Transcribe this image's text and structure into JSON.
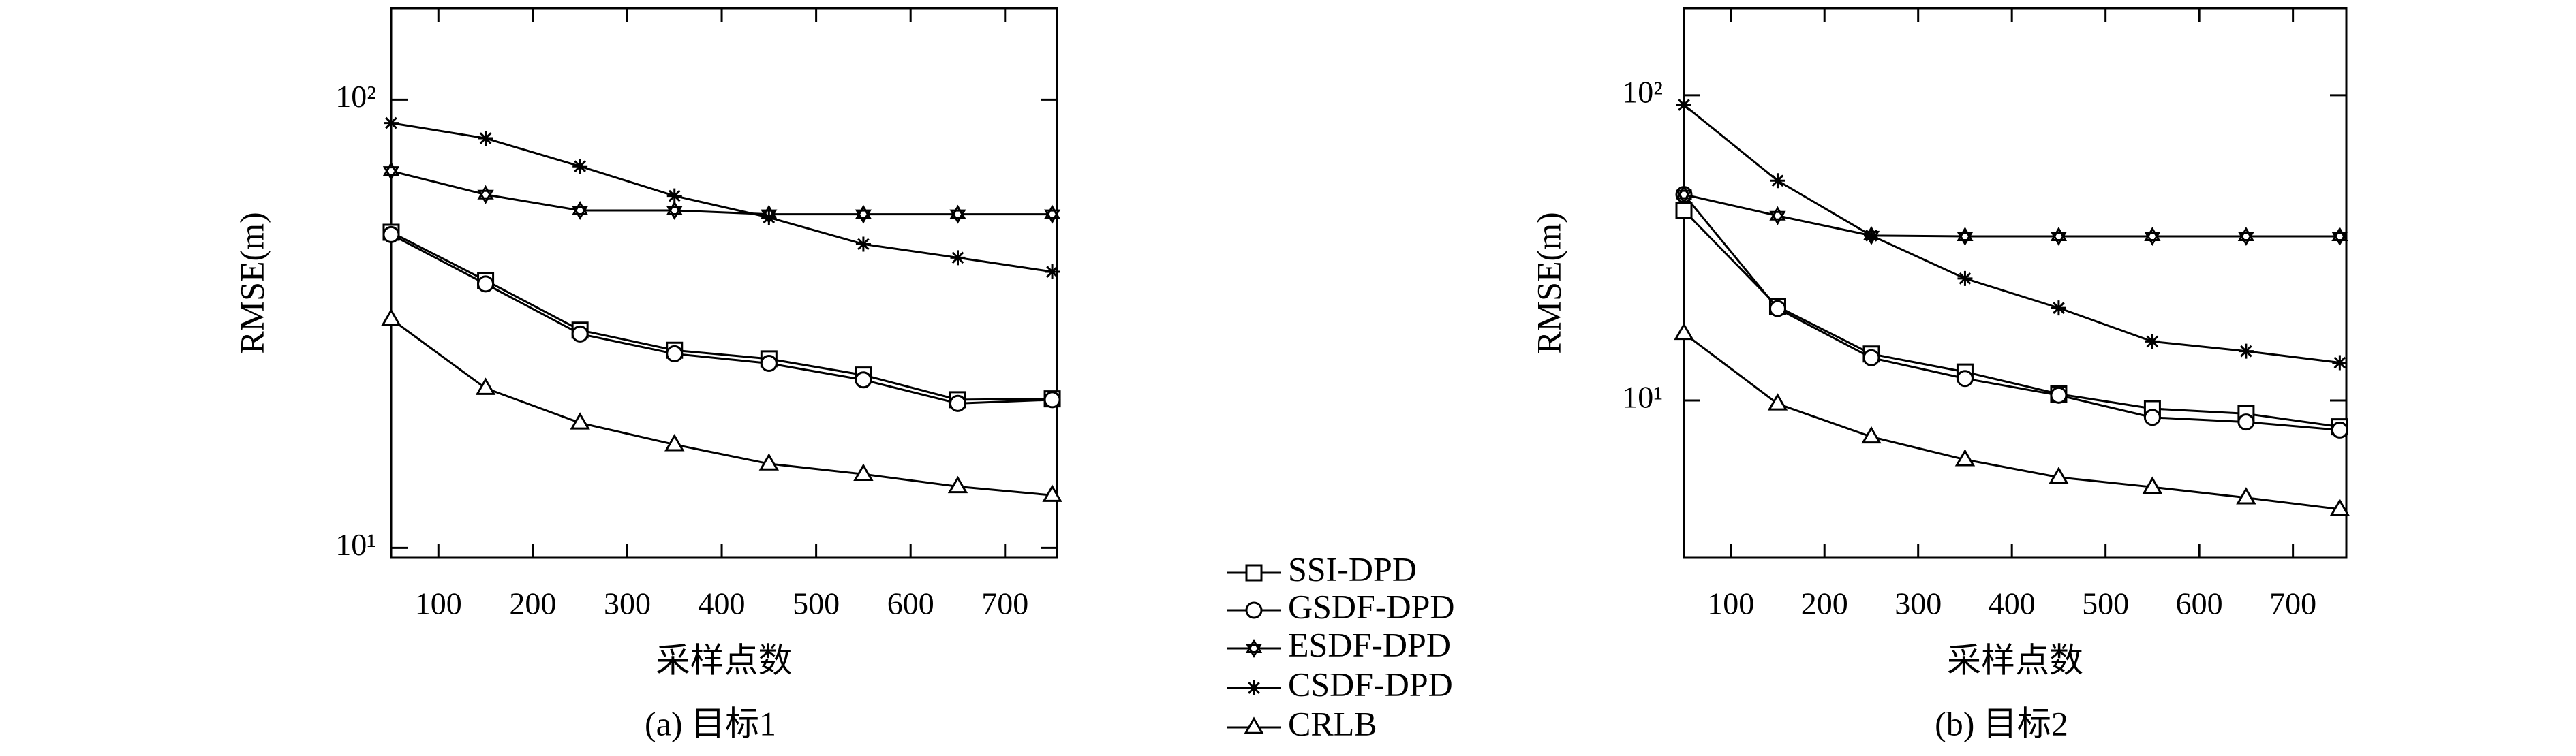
{
  "chart_data": [
    {
      "type": "line",
      "caption": "(a) 目标1",
      "xlabel": "采样点数",
      "ylabel": "RMSE(m)",
      "x": [
        50,
        150,
        250,
        350,
        450,
        550,
        650,
        750
      ],
      "xlim": [
        50,
        755
      ],
      "xticks": [
        100,
        200,
        300,
        400,
        500,
        600,
        700
      ],
      "ylog": true,
      "ylim": [
        9.5,
        160
      ],
      "yticks": [
        {
          "value": 10,
          "label": "10¹"
        },
        {
          "value": 100,
          "label": "10²"
        }
      ],
      "series": [
        {
          "name": "SSI-DPD",
          "color": "#000000",
          "marker": "square",
          "values": [
            50.6,
            39.5,
            30.6,
            27.6,
            26.4,
            24.3,
            21.4,
            21.5
          ]
        },
        {
          "name": "GSDF-DPD",
          "color": "#000000",
          "marker": "circle",
          "values": [
            50,
            38.8,
            30,
            27.1,
            25.8,
            23.7,
            21,
            21.4
          ]
        },
        {
          "name": "ESDF-DPD",
          "color": "#000000",
          "marker": "hexagram",
          "values": [
            69.3,
            61.4,
            56.6,
            56.6,
            55.5,
            55.5,
            55.5,
            55.5
          ]
        },
        {
          "name": "CSDF-DPD",
          "color": "#000000",
          "marker": "asterisk",
          "values": [
            88.7,
            82,
            71,
            61,
            54.6,
            47.6,
            44.4,
            41.3
          ]
        },
        {
          "name": "CRLB",
          "color": "#000000",
          "marker": "triangle",
          "values": [
            32.4,
            22.7,
            19,
            17,
            15.4,
            14.6,
            13.7,
            13.1
          ]
        }
      ]
    },
    {
      "type": "line",
      "caption": "(b) 目标2",
      "xlabel": "采样点数",
      "ylabel": "RMSE(m)",
      "x": [
        50,
        150,
        250,
        350,
        450,
        550,
        650,
        750
      ],
      "xlim": [
        50,
        757
      ],
      "xticks": [
        100,
        200,
        300,
        400,
        500,
        600,
        700
      ],
      "ylog": true,
      "ylim": [
        3.05,
        193
      ],
      "yticks": [
        {
          "value": 10,
          "label": "10¹"
        },
        {
          "value": 100,
          "label": "10²"
        }
      ],
      "series": [
        {
          "color": "#000000",
          "marker": "square",
          "values": [
            41.9,
            20.3,
            14.2,
            12.4,
            10.5,
            9.4,
            9.05,
            8.2
          ]
        },
        {
          "color": "#000000",
          "marker": "circle",
          "values": [
            47.3,
            20,
            13.8,
            11.8,
            10.4,
            8.8,
            8.5,
            8
          ]
        },
        {
          "color": "#000000",
          "marker": "hexagram",
          "values": [
            47.3,
            40.3,
            34.7,
            34.5,
            34.5,
            34.5,
            34.5,
            34.5
          ]
        },
        {
          "color": "#000000",
          "marker": "asterisk",
          "values": [
            93,
            52.5,
            34.7,
            25.1,
            20.1,
            15.6,
            14.5,
            13.3
          ]
        },
        {
          "color": "#000000",
          "marker": "triangle",
          "values": [
            16.6,
            9.75,
            7.6,
            6.4,
            5.6,
            5.2,
            4.8,
            4.4
          ]
        }
      ]
    }
  ]
}
